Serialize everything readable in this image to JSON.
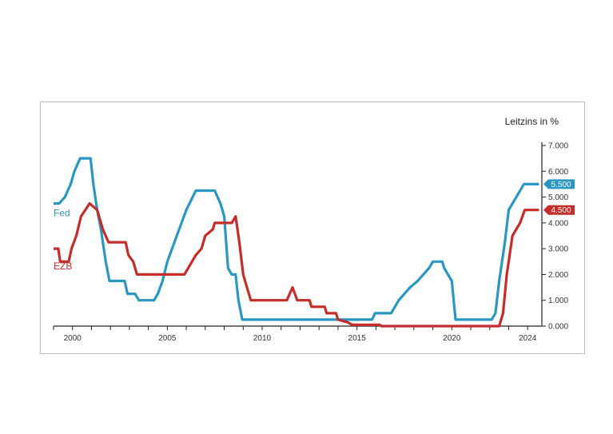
{
  "chart_data": {
    "type": "line",
    "ylabel": "Leitzins in %",
    "ylim": [
      0,
      7
    ],
    "y_ticks": [
      "0.000",
      "1.000",
      "2.000",
      "3.000",
      "4.000",
      "5.000",
      "6.000",
      "7.000"
    ],
    "y_tick_values": [
      0,
      1,
      2,
      3,
      4,
      5,
      6,
      7
    ],
    "x_ticks": [
      "2000",
      "2005",
      "2010",
      "2015",
      "2020",
      "2024"
    ],
    "x_tick_values": [
      2000,
      2005,
      2010,
      2015,
      2020,
      2024
    ],
    "xlim": [
      1999.0,
      2024.75
    ],
    "grid": false,
    "series": [
      {
        "name": "Fed",
        "color": "#2a97c2",
        "end_label": "5.500",
        "points": [
          [
            1999.0,
            4.75
          ],
          [
            1999.3,
            4.75
          ],
          [
            1999.6,
            5.0
          ],
          [
            1999.9,
            5.5
          ],
          [
            2000.1,
            6.0
          ],
          [
            2000.4,
            6.5
          ],
          [
            2000.95,
            6.5
          ],
          [
            2001.1,
            5.5
          ],
          [
            2001.3,
            4.5
          ],
          [
            2001.5,
            3.75
          ],
          [
            2001.75,
            2.5
          ],
          [
            2001.95,
            1.75
          ],
          [
            2002.75,
            1.75
          ],
          [
            2002.9,
            1.25
          ],
          [
            2003.3,
            1.25
          ],
          [
            2003.5,
            1.0
          ],
          [
            2004.3,
            1.0
          ],
          [
            2004.5,
            1.25
          ],
          [
            2004.75,
            1.75
          ],
          [
            2005.0,
            2.5
          ],
          [
            2005.5,
            3.5
          ],
          [
            2006.0,
            4.5
          ],
          [
            2006.5,
            5.25
          ],
          [
            2007.5,
            5.25
          ],
          [
            2007.8,
            4.75
          ],
          [
            2008.0,
            4.25
          ],
          [
            2008.2,
            2.25
          ],
          [
            2008.4,
            2.0
          ],
          [
            2008.6,
            2.0
          ],
          [
            2008.75,
            1.0
          ],
          [
            2008.95,
            0.25
          ],
          [
            2015.8,
            0.25
          ],
          [
            2015.95,
            0.5
          ],
          [
            2016.8,
            0.5
          ],
          [
            2017.0,
            0.75
          ],
          [
            2017.2,
            1.0
          ],
          [
            2017.5,
            1.25
          ],
          [
            2017.8,
            1.5
          ],
          [
            2018.2,
            1.75
          ],
          [
            2018.5,
            2.0
          ],
          [
            2018.8,
            2.25
          ],
          [
            2019.0,
            2.5
          ],
          [
            2019.5,
            2.5
          ],
          [
            2019.6,
            2.25
          ],
          [
            2019.8,
            2.0
          ],
          [
            2020.0,
            1.75
          ],
          [
            2020.2,
            0.25
          ],
          [
            2022.1,
            0.25
          ],
          [
            2022.3,
            0.5
          ],
          [
            2022.5,
            1.75
          ],
          [
            2022.8,
            3.25
          ],
          [
            2023.0,
            4.5
          ],
          [
            2023.4,
            5.0
          ],
          [
            2023.8,
            5.5
          ],
          [
            2024.6,
            5.5
          ]
        ]
      },
      {
        "name": "EZB",
        "color": "#c62d2a",
        "end_label": "4.500",
        "points": [
          [
            1999.0,
            3.0
          ],
          [
            1999.25,
            3.0
          ],
          [
            1999.35,
            2.5
          ],
          [
            1999.8,
            2.5
          ],
          [
            1999.95,
            3.0
          ],
          [
            2000.2,
            3.5
          ],
          [
            2000.45,
            4.25
          ],
          [
            2000.9,
            4.75
          ],
          [
            2001.3,
            4.5
          ],
          [
            2001.6,
            3.75
          ],
          [
            2001.9,
            3.25
          ],
          [
            2002.8,
            3.25
          ],
          [
            2002.95,
            2.75
          ],
          [
            2003.2,
            2.5
          ],
          [
            2003.4,
            2.0
          ],
          [
            2005.9,
            2.0
          ],
          [
            2006.1,
            2.25
          ],
          [
            2006.5,
            2.75
          ],
          [
            2006.8,
            3.0
          ],
          [
            2007.0,
            3.5
          ],
          [
            2007.4,
            3.75
          ],
          [
            2007.5,
            4.0
          ],
          [
            2008.4,
            4.0
          ],
          [
            2008.6,
            4.25
          ],
          [
            2008.8,
            3.25
          ],
          [
            2009.0,
            2.0
          ],
          [
            2009.2,
            1.5
          ],
          [
            2009.4,
            1.0
          ],
          [
            2011.3,
            1.0
          ],
          [
            2011.45,
            1.25
          ],
          [
            2011.6,
            1.5
          ],
          [
            2011.85,
            1.0
          ],
          [
            2012.5,
            1.0
          ],
          [
            2012.6,
            0.75
          ],
          [
            2013.3,
            0.75
          ],
          [
            2013.4,
            0.5
          ],
          [
            2013.9,
            0.5
          ],
          [
            2014.0,
            0.25
          ],
          [
            2014.5,
            0.15
          ],
          [
            2014.75,
            0.05
          ],
          [
            2016.2,
            0.05
          ],
          [
            2016.3,
            0.0
          ],
          [
            2022.5,
            0.0
          ],
          [
            2022.7,
            0.5
          ],
          [
            2022.9,
            2.0
          ],
          [
            2023.2,
            3.5
          ],
          [
            2023.6,
            4.0
          ],
          [
            2023.85,
            4.5
          ],
          [
            2024.6,
            4.5
          ]
        ]
      }
    ]
  }
}
